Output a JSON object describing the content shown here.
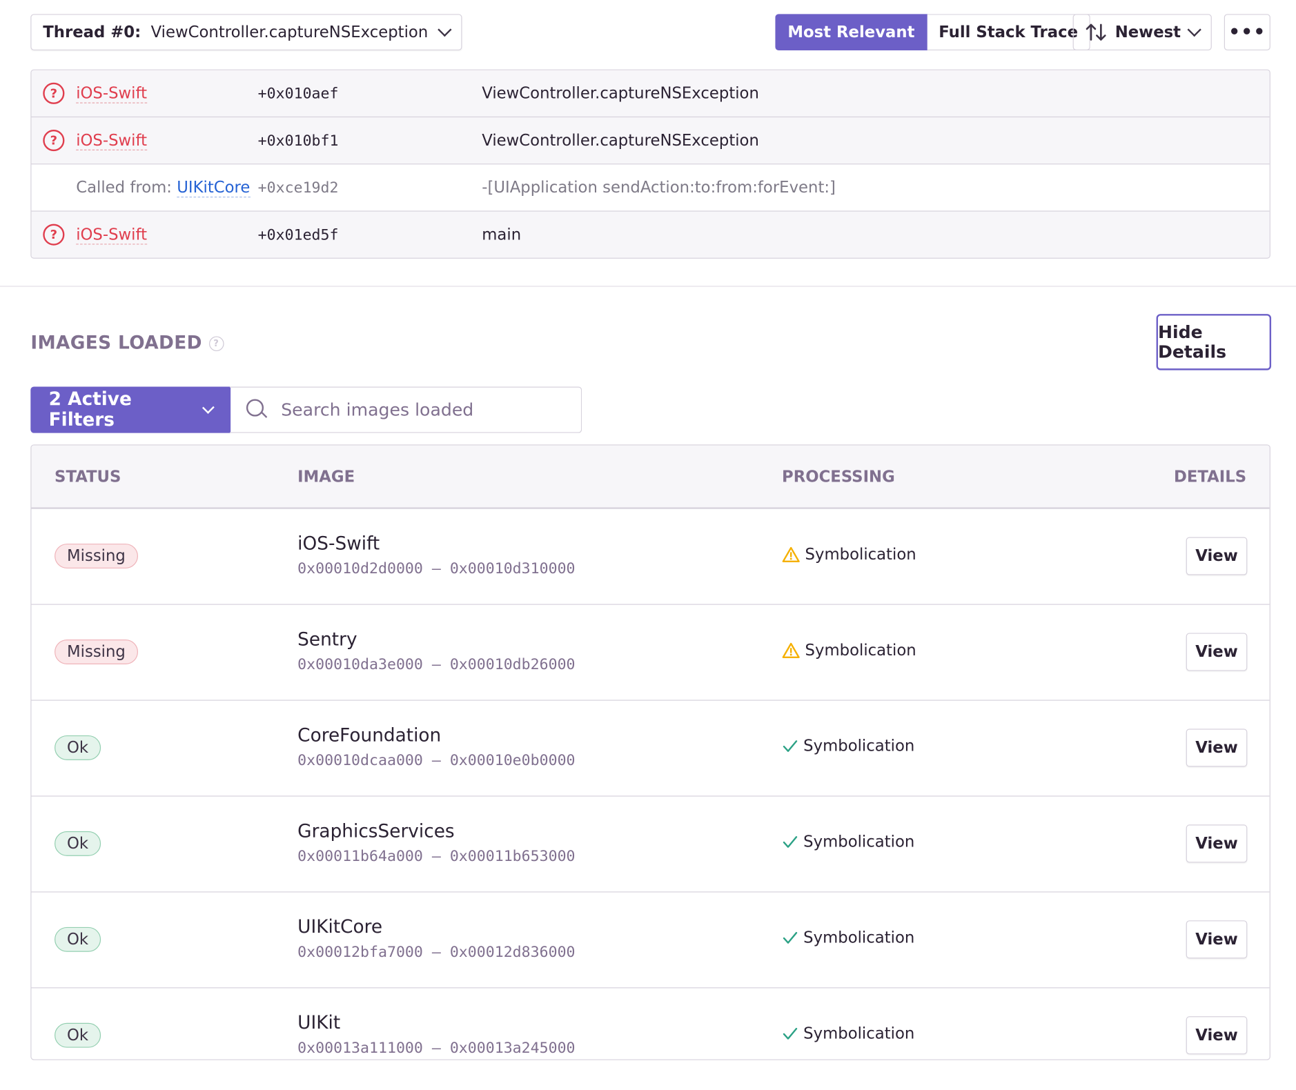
{
  "toolbar": {
    "thread_label": "Thread #0:",
    "thread_value": "ViewController.captureNSException",
    "most_relevant": "Most Relevant",
    "full_stack_trace": "Full Stack Trace",
    "sort_label": "Newest",
    "more": "•••"
  },
  "frames": [
    {
      "package": "iOS-Swift",
      "address": "+0x010aef",
      "function": "ViewController.captureNSException"
    },
    {
      "package": "iOS-Swift",
      "address": "+0x010bf1",
      "function": "ViewController.captureNSException"
    },
    {
      "called_from_label": "Called from:",
      "package": "UIKitCore",
      "address": "+0xce19d2",
      "function": "-[UIApplication sendAction:to:from:forEvent:]"
    },
    {
      "package": "iOS-Swift",
      "address": "+0x01ed5f",
      "function": "main"
    }
  ],
  "images_loaded": {
    "title": "IMAGES LOADED",
    "hide_details": "Hide Details",
    "filters_label": "2 Active Filters",
    "search_placeholder": "Search images loaded",
    "columns": {
      "status": "STATUS",
      "image": "IMAGE",
      "processing": "PROCESSING",
      "details": "DETAILS"
    },
    "rows": [
      {
        "status": "Missing",
        "name": "iOS-Swift",
        "range": "0x00010d2d0000 – 0x00010d310000",
        "processing": "Symbolication",
        "view": "View"
      },
      {
        "status": "Missing",
        "name": "Sentry",
        "range": "0x00010da3e000 – 0x00010db26000",
        "processing": "Symbolication",
        "view": "View"
      },
      {
        "status": "Ok",
        "name": "CoreFoundation",
        "range": "0x00010dcaa000 – 0x00010e0b0000",
        "processing": "Symbolication",
        "view": "View"
      },
      {
        "status": "Ok",
        "name": "GraphicsServices",
        "range": "0x00011b64a000 – 0x00011b653000",
        "processing": "Symbolication",
        "view": "View"
      },
      {
        "status": "Ok",
        "name": "UIKitCore",
        "range": "0x00012bfa7000 – 0x00012d836000",
        "processing": "Symbolication",
        "view": "View"
      },
      {
        "status": "Ok",
        "name": "UIKit",
        "range": "0x00013a111000 – 0x00013a245000",
        "processing": "Symbolication",
        "view": "View"
      }
    ]
  },
  "colors": {
    "accent": "#6c5fc7",
    "error": "#e03e4e",
    "link": "#2562d4",
    "warning": "#f5b000",
    "success": "#2ba185"
  }
}
